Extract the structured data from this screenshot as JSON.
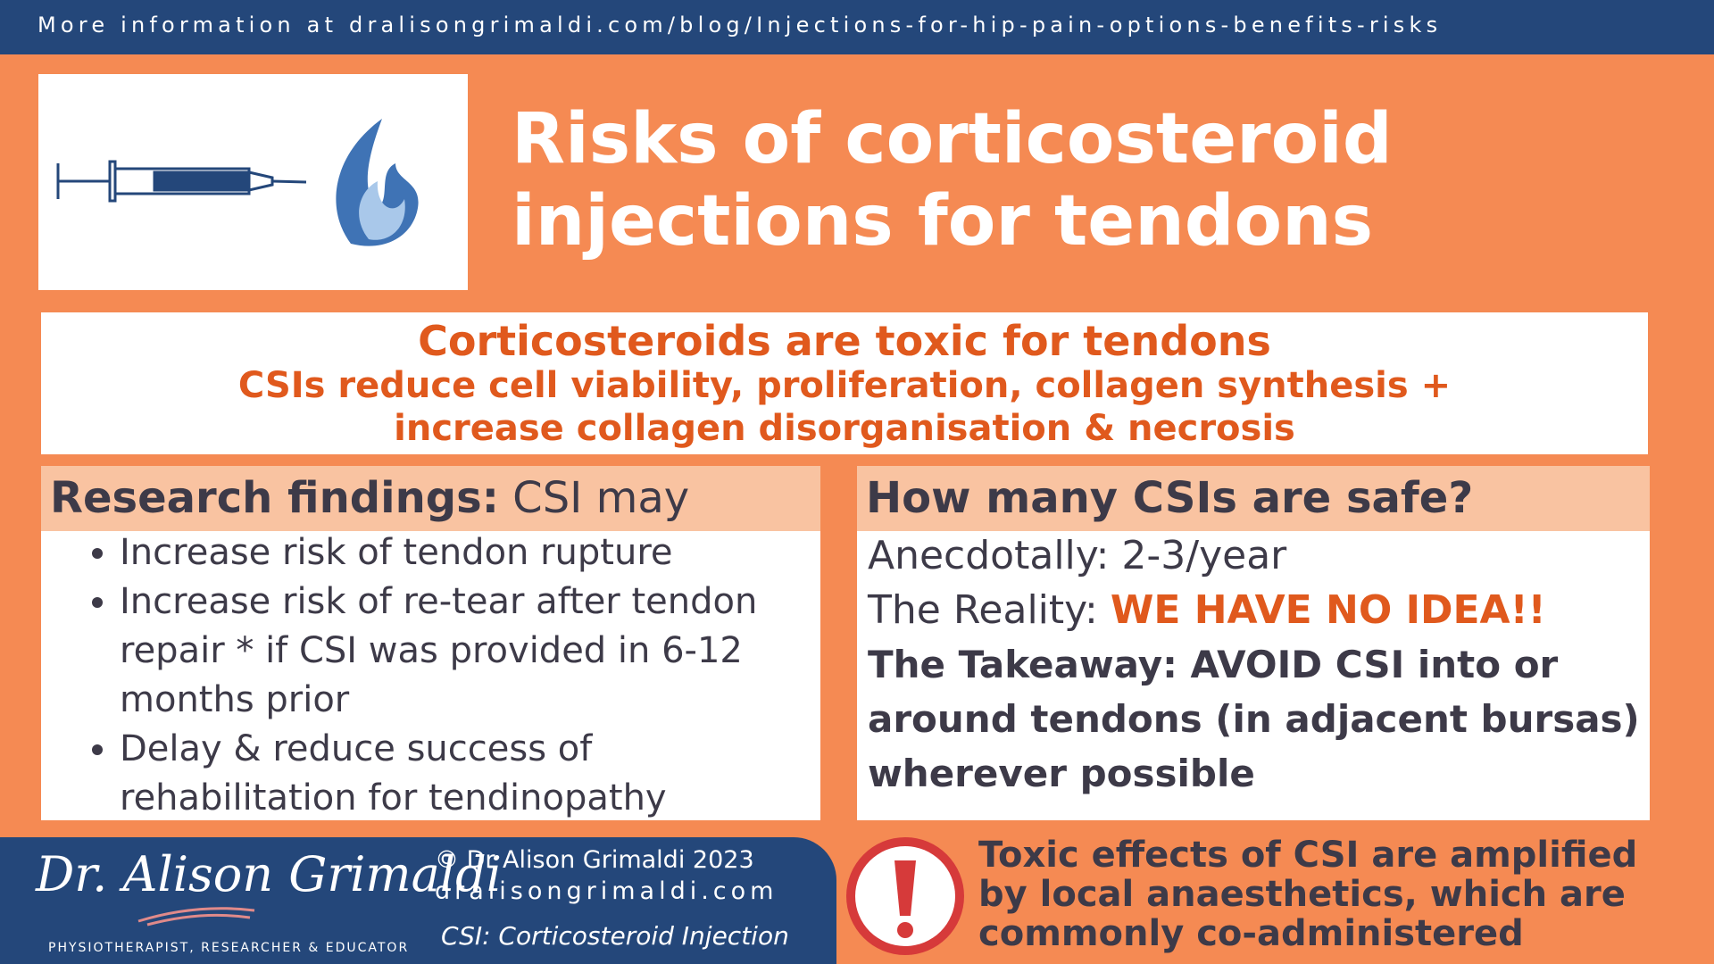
{
  "header": {
    "url": "More information at dralisongrimaldi.com/blog/Injections-for-hip-pain-options-benefits-risks"
  },
  "title": {
    "line1": "Risks of corticosteroid",
    "line2": "injections for tendons"
  },
  "summary": {
    "line1": "Corticosteroids are toxic for tendons",
    "line2": "CSIs reduce cell viability, proliferation, collagen synthesis +",
    "line3": "increase collagen disorganisation & necrosis"
  },
  "research": {
    "heading_bold": "Research findings:",
    "heading_rest": "CSI may",
    "items": [
      "Increase risk of tendon rupture",
      "Increase risk of re-tear after tendon repair * if CSI was provided in 6-12 months prior",
      "Delay & reduce success of rehabilitation for tendinopathy"
    ]
  },
  "safety": {
    "heading": "How many CSIs are safe?",
    "anecdotal": "Anecdotally: 2-3/year",
    "reality_label": "The Reality:",
    "reality_value": "WE HAVE NO IDEA!!",
    "takeaway": "The Takeaway: AVOID CSI into or around tendons (in adjacent bursas) wherever possible"
  },
  "footer": {
    "logo": "Dr. Alison Grimaldi",
    "tagline": "PHYSIOTHERAPIST, RESEARCHER & EDUCATOR",
    "copyright": "© Dr Alison Grimaldi 2023",
    "website": "dralisongrimaldi.com",
    "abbreviation": "CSI: Corticosteroid Injection"
  },
  "warning": {
    "text": "Toxic effects of CSI are amplified by local anaesthetics, which are commonly co-administered"
  }
}
